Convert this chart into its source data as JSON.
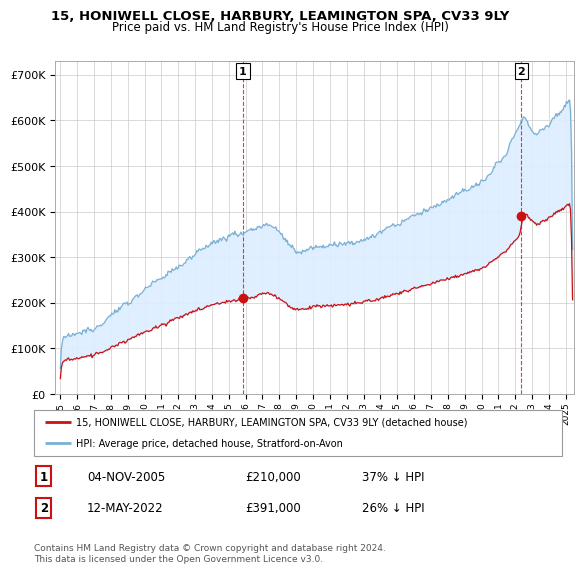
{
  "title": "15, HONIWELL CLOSE, HARBURY, LEAMINGTON SPA, CV33 9LY",
  "subtitle": "Price paid vs. HM Land Registry's House Price Index (HPI)",
  "background_color": "#ffffff",
  "grid_color": "#cccccc",
  "hpi_color": "#7ab0d4",
  "price_color": "#cc1111",
  "fill_color": "#ddeeff",
  "sale1_year": 2005.84,
  "sale1_price": 210000,
  "sale2_year": 2022.37,
  "sale2_price": 391000,
  "legend_label_price": "15, HONIWELL CLOSE, HARBURY, LEAMINGTON SPA, CV33 9LY (detached house)",
  "legend_label_hpi": "HPI: Average price, detached house, Stratford-on-Avon",
  "footnote": "Contains HM Land Registry data © Crown copyright and database right 2024.\nThis data is licensed under the Open Government Licence v3.0.",
  "table_rows": [
    {
      "num": "1",
      "date": "04-NOV-2005",
      "price": "£210,000",
      "change": "37% ↓ HPI"
    },
    {
      "num": "2",
      "date": "12-MAY-2022",
      "price": "£391,000",
      "change": "26% ↓ HPI"
    }
  ],
  "ylim": [
    0,
    730000
  ],
  "xlim_start": 1994.7,
  "xlim_end": 2025.5,
  "yticks": [
    0,
    100000,
    200000,
    300000,
    400000,
    500000,
    600000,
    700000
  ]
}
